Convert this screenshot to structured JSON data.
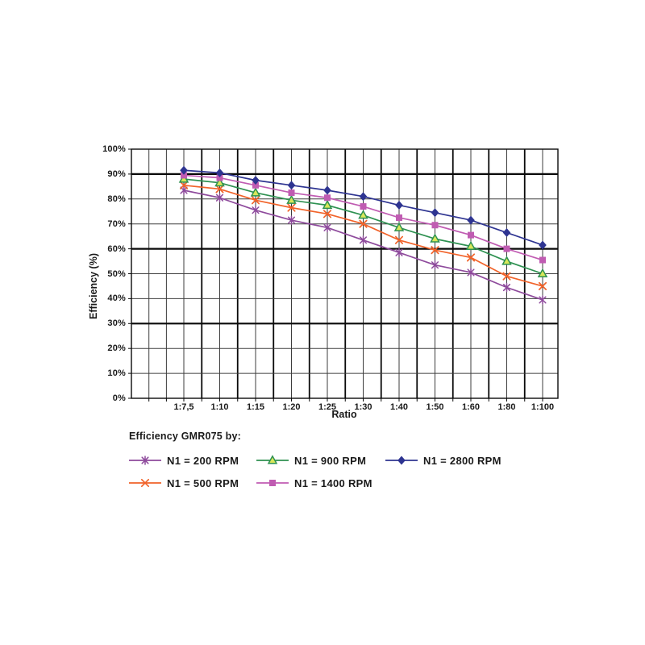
{
  "page": {
    "background": "#ffffff"
  },
  "chart_data": {
    "type": "line",
    "title": "",
    "xlabel": "Ratio",
    "ylabel": "Efficiency (%)",
    "ylim": [
      0,
      100
    ],
    "y_tick_labels": [
      "0%",
      "10%",
      "20%",
      "30%",
      "40%",
      "50%",
      "60%",
      "70%",
      "80%",
      "90%",
      "100%"
    ],
    "categories": [
      "1:7,5",
      "1:10",
      "1:15",
      "1:20",
      "1:25",
      "1:30",
      "1:40",
      "1:50",
      "1:60",
      "1:80",
      "1:100"
    ],
    "grid": "dense black grid, heavier lines at 30/60/90% and between ratio columns",
    "legend_position": "below chart, two rows",
    "series": [
      {
        "name": "N1 = 200 RPM",
        "marker": "asterisk",
        "color": "#8E4A9C",
        "values": [
          83.5,
          80.5,
          75.5,
          71.5,
          68.5,
          63.5,
          58.5,
          53.5,
          50.5,
          44.5,
          39.5
        ]
      },
      {
        "name": "N1 = 500 RPM",
        "marker": "x",
        "color": "#F1632A",
        "values": [
          85.5,
          84.0,
          79.5,
          76.5,
          74.0,
          70.0,
          63.5,
          59.5,
          56.5,
          49.0,
          45.0
        ]
      },
      {
        "name": "N1 = 900 RPM",
        "marker": "triangle",
        "color": "#2E9151",
        "marker_fill": "#D8E75A",
        "values": [
          88.0,
          86.5,
          82.5,
          79.5,
          77.5,
          73.5,
          68.5,
          64.0,
          61.0,
          55.0,
          50.0
        ]
      },
      {
        "name": "N1 = 1400 RPM",
        "marker": "square",
        "color": "#C05CB2",
        "values": [
          89.5,
          88.5,
          85.5,
          82.5,
          80.5,
          77.0,
          72.5,
          69.5,
          65.5,
          60.0,
          55.5
        ]
      },
      {
        "name": "N1 = 2800 RPM",
        "marker": "diamond",
        "color": "#2E3491",
        "values": [
          91.5,
          90.5,
          87.5,
          85.5,
          83.5,
          81.0,
          77.5,
          74.5,
          71.5,
          66.5,
          61.5
        ]
      }
    ],
    "legend": {
      "title": "Efficiency GMR075 by:",
      "rows": [
        [
          0,
          2,
          4
        ],
        [
          1,
          3
        ]
      ]
    }
  }
}
